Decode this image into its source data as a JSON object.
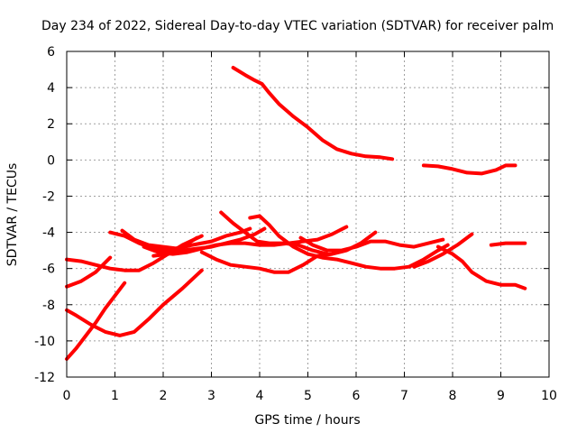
{
  "chart_data": {
    "type": "line",
    "title": "Day 234 of 2022, Sidereal Day-to-day VTEC variation (SDTVAR) for receiver palm",
    "xlabel": "GPS time / hours",
    "ylabel": "SDTVAR / TECUs",
    "xlim": [
      0,
      10
    ],
    "ylim": [
      -12,
      6
    ],
    "xticks": [
      0,
      1,
      2,
      3,
      4,
      5,
      6,
      7,
      8,
      9,
      10
    ],
    "yticks": [
      -12,
      -10,
      -8,
      -6,
      -4,
      -2,
      0,
      2,
      4,
      6
    ],
    "grid": true,
    "color": "#ff0000",
    "series": [
      {
        "name": "s1",
        "x": [
          3.45,
          3.7,
          3.9,
          4.05,
          4.2,
          4.4,
          4.7,
          5.0,
          5.3,
          5.6,
          5.9,
          6.2,
          6.5,
          6.75
        ],
        "y": [
          5.1,
          4.7,
          4.4,
          4.2,
          3.7,
          3.1,
          2.4,
          1.8,
          1.1,
          0.6,
          0.35,
          0.2,
          0.15,
          0.05
        ]
      },
      {
        "name": "s2",
        "x": [
          7.4,
          7.7,
          8.0,
          8.3,
          8.6,
          8.9,
          9.1,
          9.3
        ],
        "y": [
          -0.3,
          -0.35,
          -0.5,
          -0.7,
          -0.75,
          -0.55,
          -0.3,
          -0.3
        ]
      },
      {
        "name": "s3",
        "x": [
          0.0,
          0.2,
          0.4,
          0.6,
          0.8,
          1.0,
          1.2
        ],
        "y": [
          -11.0,
          -10.4,
          -9.7,
          -9.0,
          -8.2,
          -7.5,
          -6.8
        ]
      },
      {
        "name": "s4",
        "x": [
          0.0,
          0.2,
          0.5,
          0.8,
          1.1,
          1.4,
          1.7,
          2.0,
          2.4,
          2.8
        ],
        "y": [
          -8.3,
          -8.6,
          -9.1,
          -9.5,
          -9.7,
          -9.5,
          -8.8,
          -8.0,
          -7.1,
          -6.1
        ]
      },
      {
        "name": "s5",
        "x": [
          0.0,
          0.3,
          0.6,
          0.9
        ],
        "y": [
          -7.0,
          -6.7,
          -6.2,
          -5.4
        ]
      },
      {
        "name": "s6",
        "x": [
          0.0,
          0.3,
          0.6,
          0.9,
          1.2,
          1.5,
          1.8,
          2.1,
          2.4,
          2.8
        ],
        "y": [
          -5.5,
          -5.6,
          -5.8,
          -6.0,
          -6.1,
          -6.1,
          -5.7,
          -5.2,
          -4.7,
          -4.2
        ]
      },
      {
        "name": "s7",
        "x": [
          0.9,
          1.2,
          1.5,
          1.8,
          2.1,
          2.4,
          2.7
        ],
        "y": [
          -4.0,
          -4.2,
          -4.6,
          -4.9,
          -5.0,
          -4.8,
          -4.3
        ]
      },
      {
        "name": "s8",
        "x": [
          1.15,
          1.4,
          1.7,
          2.0,
          2.3,
          2.6,
          3.0,
          3.3,
          3.6,
          3.8
        ],
        "y": [
          -3.9,
          -4.4,
          -4.7,
          -4.8,
          -4.9,
          -4.7,
          -4.5,
          -4.2,
          -4.0,
          -3.8
        ]
      },
      {
        "name": "s9",
        "x": [
          1.6,
          1.9,
          2.2,
          2.5,
          2.8,
          3.1,
          3.4,
          3.7,
          4.0,
          4.3,
          4.6,
          4.9,
          5.2,
          5.5,
          5.8
        ],
        "y": [
          -4.8,
          -5.1,
          -5.2,
          -5.1,
          -4.9,
          -4.7,
          -4.6,
          -4.6,
          -4.7,
          -4.7,
          -4.6,
          -4.5,
          -4.4,
          -4.1,
          -3.7
        ]
      },
      {
        "name": "s10",
        "x": [
          1.8,
          2.1,
          2.4,
          2.7,
          3.0,
          3.3,
          3.6,
          3.9,
          4.1
        ],
        "y": [
          -5.3,
          -5.2,
          -5.0,
          -4.9,
          -4.8,
          -4.6,
          -4.4,
          -4.1,
          -3.8
        ]
      },
      {
        "name": "s11",
        "x": [
          2.8,
          3.1,
          3.4,
          3.7,
          4.0,
          4.3,
          4.6,
          4.9,
          5.2,
          5.5,
          5.8,
          6.1,
          6.4
        ],
        "y": [
          -5.1,
          -5.5,
          -5.8,
          -5.9,
          -6.0,
          -6.2,
          -6.2,
          -5.8,
          -5.3,
          -5.2,
          -5.0,
          -4.6,
          -4.0
        ]
      },
      {
        "name": "s12",
        "x": [
          3.2,
          3.45,
          3.7,
          3.95,
          4.2,
          4.5,
          4.8,
          5.1,
          5.4
        ],
        "y": [
          -2.9,
          -3.5,
          -4.0,
          -4.5,
          -4.6,
          -4.6,
          -4.7,
          -5.0,
          -5.2
        ]
      },
      {
        "name": "s13",
        "x": [
          3.8,
          4.0,
          4.2,
          4.4,
          4.7,
          5.0,
          5.3,
          5.6,
          5.9,
          6.2,
          6.5,
          6.8,
          7.1,
          7.4,
          7.7,
          7.9
        ],
        "y": [
          -3.2,
          -3.1,
          -3.6,
          -4.2,
          -4.8,
          -5.2,
          -5.4,
          -5.5,
          -5.7,
          -5.9,
          -6.0,
          -6.0,
          -5.9,
          -5.5,
          -5.0,
          -4.7
        ]
      },
      {
        "name": "s14",
        "x": [
          4.85,
          5.1,
          5.4,
          5.7,
          6.0,
          6.3,
          6.6,
          6.9,
          7.2,
          7.5,
          7.8
        ],
        "y": [
          -4.3,
          -4.7,
          -5.0,
          -5.0,
          -4.8,
          -4.5,
          -4.5,
          -4.7,
          -4.8,
          -4.6,
          -4.4
        ]
      },
      {
        "name": "s15",
        "x": [
          7.7,
          8.0,
          8.2,
          8.4,
          8.7,
          9.0,
          9.3,
          9.5
        ],
        "y": [
          -4.8,
          -5.2,
          -5.6,
          -6.2,
          -6.7,
          -6.9,
          -6.9,
          -7.1
        ]
      },
      {
        "name": "s16",
        "x": [
          7.2,
          7.5,
          7.8,
          8.1,
          8.4
        ],
        "y": [
          -5.9,
          -5.6,
          -5.2,
          -4.7,
          -4.1
        ]
      },
      {
        "name": "s17",
        "x": [
          8.8,
          9.1,
          9.3,
          9.5
        ],
        "y": [
          -4.7,
          -4.6,
          -4.6,
          -4.6
        ]
      }
    ]
  }
}
